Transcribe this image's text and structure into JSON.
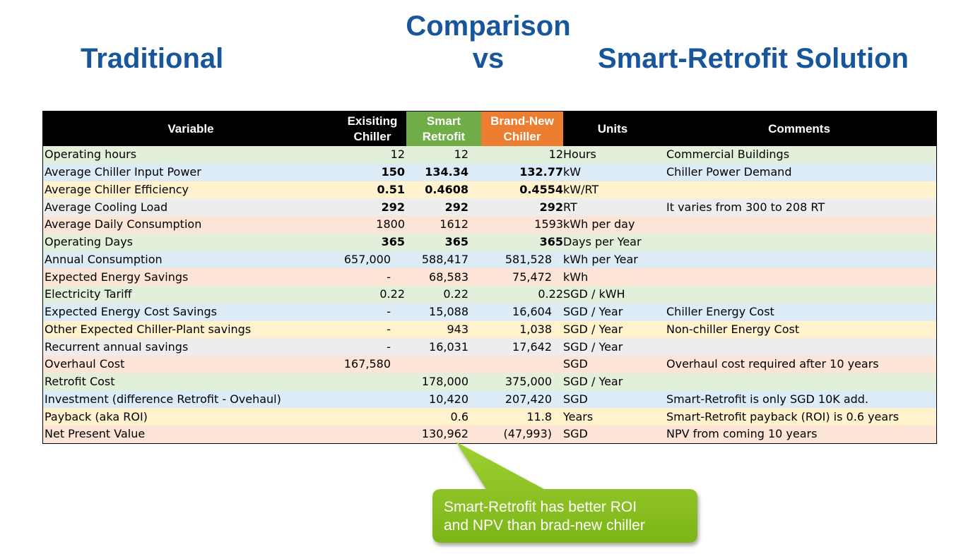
{
  "titles": {
    "left": "Traditional",
    "center_line1": "Comparison",
    "center_line2": "vs",
    "right": "Smart-Retrofit Solution"
  },
  "table": {
    "headers": {
      "variable": "Variable",
      "existing_line1": "Exisiting",
      "existing_line2": "Chiller",
      "smart_line1": "Smart",
      "smart_line2": "Retrofit",
      "brand_line1": "Brand-New",
      "brand_line2": "Chiller",
      "units": "Units",
      "comments": "Comments"
    },
    "header_colors": {
      "header_bg": "#000000",
      "smart": "#70ad47",
      "brand_new": "#ed7d31"
    },
    "rows": [
      {
        "variable": "Operating hours",
        "existing": "12",
        "smart": "12",
        "brand": "12",
        "units": "Hours",
        "comment": "Commercial Buildings",
        "bg": "#e2efda"
      },
      {
        "variable": "Average Chiller Input Power",
        "existing": "150",
        "smart": "134.34",
        "brand": "132.77",
        "units": "kW",
        "comment": "Chiller Power Demand",
        "bg": "#ddebf7"
      },
      {
        "variable": "Average Chiller Efficiency",
        "existing": "0.51",
        "smart": "0.4608",
        "brand": "0.4554",
        "units": "kW/RT",
        "comment": "",
        "bg": "#fff2cc"
      },
      {
        "variable": "Average Cooling Load",
        "existing": "292",
        "smart": "292",
        "brand": "292",
        "units": "RT",
        "comment": "It varies from 300 to 208 RT",
        "bg": "#ededed"
      },
      {
        "variable": "Average Daily Consumption",
        "existing": "1800",
        "smart": "1612",
        "brand": "1593",
        "units": "kWh per day",
        "comment": "",
        "bg": "#fce4d6"
      },
      {
        "variable": "Operating Days",
        "existing": "365",
        "smart": "365",
        "brand": "365",
        "units": "Days per Year",
        "comment": "",
        "bg": "#e2efda"
      },
      {
        "variable": "Annual Consumption",
        "existing": "657,000",
        "smart": "588,417",
        "brand": "581,528",
        "units": "kWh per Year",
        "comment": "",
        "bg": "#ddebf7"
      },
      {
        "variable": "Expected Energy Savings",
        "existing": "-",
        "smart": "68,583",
        "brand": "75,472",
        "units": "kWh",
        "comment": "",
        "bg": "#fce4d6"
      },
      {
        "variable": "Electricity Tariff",
        "existing": "0.22",
        "smart": "0.22",
        "brand": "0.22",
        "units": "SGD / kWH",
        "comment": "",
        "bg": "#e2efda"
      },
      {
        "variable": "Expected Energy Cost Savings",
        "existing": "-",
        "smart": "15,088",
        "brand": "16,604",
        "units": "SGD / Year",
        "comment": "Chiller Energy Cost",
        "bg": "#ddebf7"
      },
      {
        "variable": "Other Expected Chiller-Plant savings",
        "existing": "-",
        "smart": "943",
        "brand": "1,038",
        "units": "SGD / Year",
        "comment": "Non-chiller Energy Cost",
        "bg": "#fff2cc"
      },
      {
        "variable": "Recurrent annual savings",
        "existing": "-",
        "smart": "16,031",
        "brand": "17,642",
        "units": "SGD / Year",
        "comment": "",
        "bg": "#ededed"
      },
      {
        "variable": "Overhaul Cost",
        "existing": "167,580",
        "smart": "",
        "brand": "",
        "units": "SGD",
        "comment": "Overhaul cost required after 10 years",
        "bg": "#fce4d6"
      },
      {
        "variable": "Retrofit Cost",
        "existing": "",
        "smart": "178,000",
        "brand": "375,000",
        "units": "SGD / Year",
        "comment": "",
        "bg": "#e2efda"
      },
      {
        "variable": "Investment (difference  Retrofit - Ovehaul)",
        "existing": "",
        "smart": "10,420",
        "brand": "207,420",
        "units": "SGD",
        "comment": "Smart-Retrofit is only SGD 10K add.",
        "bg": "#ddebf7"
      },
      {
        "variable": "Payback (aka ROI)",
        "existing": "",
        "smart": "0.6",
        "brand": "11.8",
        "units": "Years",
        "comment": "Smart-Retrofit payback (ROI) is 0.6 years",
        "bg": "#fff2cc"
      },
      {
        "variable": "Net Present Value",
        "existing": "",
        "smart": "130,962",
        "brand": "(47,993)",
        "units": "SGD",
        "comment": "NPV from coming 10 years",
        "bg": "#fce4d6"
      }
    ]
  },
  "callout": {
    "line1": "Smart-Retrofit has better ROI",
    "line2": "and NPV than brad-new chiller",
    "color": "#8dc21f"
  }
}
